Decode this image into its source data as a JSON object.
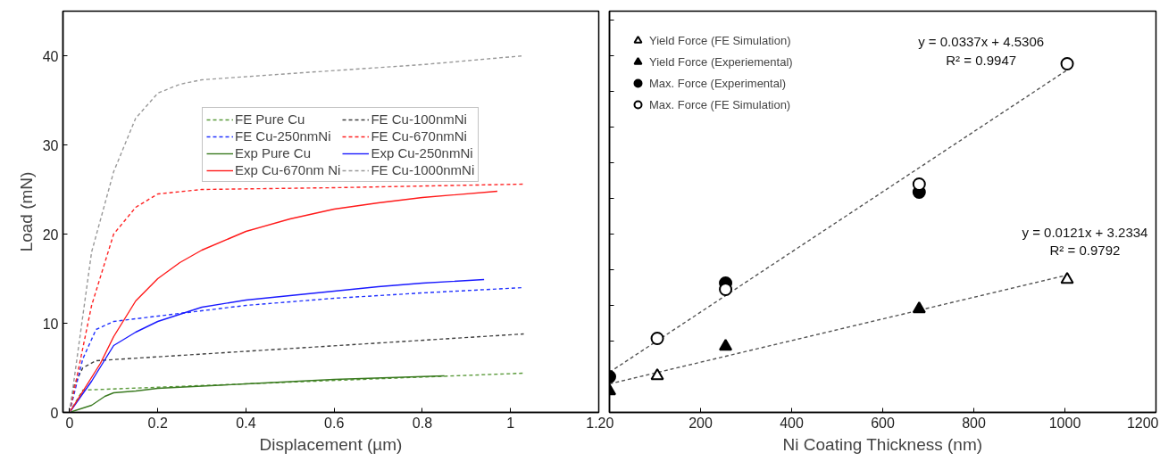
{
  "chart_data": [
    {
      "type": "line",
      "xlabel": "Displacement (µm)",
      "ylabel": "Load (mN)",
      "xlim": [
        -0.015,
        1.2
      ],
      "ylim": [
        0,
        45
      ],
      "xticks": [
        0,
        0.2,
        0.4,
        0.6,
        0.8,
        1,
        1.2
      ],
      "yticks": [
        0,
        10,
        20,
        30,
        40
      ],
      "grid": false,
      "legend": "top right",
      "series": [
        {
          "name": "FE Pure Cu",
          "color": "#5a9a3a",
          "line_style": "dashed",
          "x": [
            0,
            0.03,
            1.03
          ],
          "values": [
            0,
            2.5,
            4.4
          ]
        },
        {
          "name": "FE Cu-100nmNi",
          "color": "#404040",
          "line_style": "dashed",
          "x": [
            0,
            0.01,
            0.03,
            0.06,
            1.03
          ],
          "values": [
            0,
            3,
            5,
            5.8,
            8.8
          ]
        },
        {
          "name": "FE Cu-250nmNi",
          "color": "#2233ff",
          "line_style": "dashed",
          "x": [
            0,
            0.03,
            0.06,
            0.1,
            0.2,
            0.4,
            0.6,
            0.8,
            1.03
          ],
          "values": [
            0,
            6,
            9.3,
            10.2,
            10.8,
            12,
            12.8,
            13.4,
            14
          ]
        },
        {
          "name": "FE Cu-670nmNi",
          "color": "#ff2222",
          "line_style": "dashed",
          "x": [
            0,
            0.05,
            0.1,
            0.15,
            0.2,
            0.3,
            0.6,
            1.03
          ],
          "values": [
            0,
            12,
            20,
            23,
            24.5,
            25,
            25.2,
            25.6
          ]
        },
        {
          "name": "Exp Pure Cu",
          "color": "#3a7a20",
          "line_style": "solid",
          "x": [
            0,
            0.05,
            0.08,
            0.1,
            0.15,
            0.2,
            0.4,
            0.6,
            0.85
          ],
          "values": [
            0,
            0.8,
            1.8,
            2.2,
            2.4,
            2.7,
            3.2,
            3.7,
            4.1
          ]
        },
        {
          "name": "Exp Cu-250nmNi",
          "color": "#1a1aff",
          "line_style": "solid",
          "x": [
            0,
            0.05,
            0.1,
            0.15,
            0.2,
            0.25,
            0.3,
            0.4,
            0.5,
            0.6,
            0.7,
            0.8,
            0.94
          ],
          "values": [
            0,
            3.5,
            7.5,
            9,
            10.2,
            11,
            11.8,
            12.6,
            13.1,
            13.6,
            14.1,
            14.5,
            14.9
          ]
        },
        {
          "name": "Exp Cu-670nm Ni",
          "color": "#ff1a1a",
          "line_style": "solid",
          "x": [
            0,
            0.07,
            0.1,
            0.15,
            0.2,
            0.25,
            0.3,
            0.4,
            0.5,
            0.6,
            0.7,
            0.8,
            0.97
          ],
          "values": [
            0,
            5.5,
            8.5,
            12.5,
            15,
            16.8,
            18.2,
            20.3,
            21.7,
            22.8,
            23.5,
            24.1,
            24.8
          ]
        },
        {
          "name": "FE Cu-1000nmNi",
          "color": "#999999",
          "line_style": "dashed",
          "x": [
            0,
            0.05,
            0.1,
            0.15,
            0.2,
            0.25,
            0.3,
            0.5,
            0.8,
            1.03
          ],
          "values": [
            0,
            18,
            27,
            33,
            35.8,
            36.8,
            37.3,
            38,
            39,
            40
          ]
        }
      ]
    },
    {
      "type": "scatter",
      "xlabel": "Ni Coating Thickness (nm)",
      "xlim": [
        0,
        1200
      ],
      "ylim": [
        0,
        45
      ],
      "xticks": [
        0,
        200,
        400,
        600,
        800,
        1000,
        1200
      ],
      "yticks": [
        {
          "value": 0,
          "label": null
        },
        {
          "value": 4,
          "label": null
        },
        {
          "value": 8,
          "label": null
        },
        {
          "value": 12,
          "label": null
        },
        {
          "value": 16,
          "label": null
        },
        {
          "value": 20,
          "label": null
        },
        {
          "value": 24,
          "label": null
        },
        {
          "value": 28,
          "label": null
        },
        {
          "value": 32,
          "label": null
        },
        {
          "value": 36,
          "label": null
        },
        {
          "value": 40,
          "label": null
        },
        {
          "value": 44,
          "label": null
        }
      ],
      "tick_labels": "x",
      "grid": false,
      "legend": "top left",
      "annotations": [
        "y = 0.0337x + 4.5306",
        "R² = 0.9947",
        "y = 0.0121x + 3.2334",
        "R² = 0.9792"
      ],
      "series": [
        {
          "type": "line",
          "color": "#555555",
          "line_style": "dashed",
          "x": [
            0,
            1005
          ],
          "values": [
            4.5,
            38.4
          ]
        },
        {
          "type": "line",
          "color": "#555555",
          "line_style": "dashed",
          "x": [
            0,
            1005
          ],
          "values": [
            3.2,
            15.4
          ]
        },
        {
          "name": "Yield Force (FE Simulation)",
          "color": "#000000",
          "marker": "triangle_open",
          "x": [
            105,
            680,
            1005
          ],
          "values": [
            4.1,
            null,
            14.9
          ]
        },
        {
          "name": "Yield Force (Experiemental)",
          "color": "#000000",
          "marker": "triangle",
          "x": [
            0,
            255,
            680
          ],
          "values": [
            2.4,
            7.4,
            11.6
          ]
        },
        {
          "name": "Max. Force (Experimental)",
          "color": "#000000",
          "marker": "circle",
          "x": [
            0,
            255,
            680
          ],
          "values": [
            4.0,
            14.5,
            24.7
          ]
        },
        {
          "name": "Max. Force (FE Simulation)",
          "color": "#000000",
          "marker": "circle_open",
          "x": [
            105,
            255,
            680,
            1005
          ],
          "values": [
            8.3,
            13.8,
            25.6,
            39.1
          ]
        }
      ]
    }
  ]
}
